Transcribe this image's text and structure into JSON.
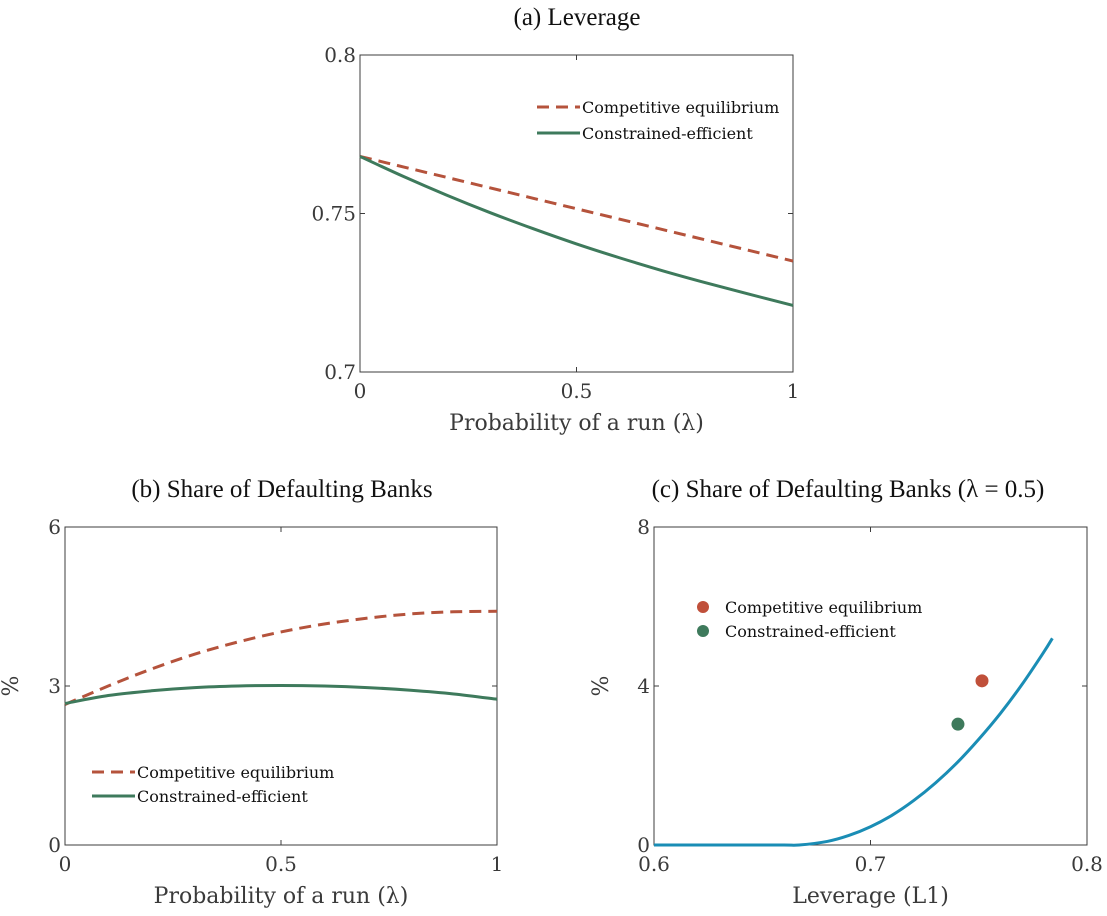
{
  "chart_data": [
    {
      "id": "a",
      "type": "line",
      "title": "(a) Leverage",
      "xlabel": "Probability of a run (λ)",
      "ylabel": "",
      "xlim": [
        0,
        1
      ],
      "ylim": [
        0.7,
        0.8
      ],
      "xticks": [
        0,
        0.5,
        1
      ],
      "xtick_labels": [
        "0",
        "0.5",
        "1"
      ],
      "yticks": [
        0.7,
        0.75,
        0.8
      ],
      "ytick_labels": [
        "0.7",
        "0.75",
        "0.8"
      ],
      "grid": false,
      "legend_position": "top-right",
      "series": [
        {
          "name": "Competitive equilibrium",
          "color": "#b5533c",
          "dash": "dashed",
          "x": [
            0,
            0.1,
            0.2,
            0.3,
            0.4,
            0.5,
            0.6,
            0.7,
            0.8,
            0.9,
            1
          ],
          "y": [
            0.768,
            0.7647,
            0.7614,
            0.7581,
            0.7548,
            0.7515,
            0.7482,
            0.7449,
            0.7416,
            0.7383,
            0.735
          ]
        },
        {
          "name": "Constrained-efficient",
          "color": "#3e7a5c",
          "dash": "solid",
          "x": [
            0,
            0.1,
            0.2,
            0.3,
            0.4,
            0.5,
            0.6,
            0.7,
            0.8,
            0.9,
            1
          ],
          "y": [
            0.768,
            0.7617,
            0.7558,
            0.7503,
            0.7452,
            0.7404,
            0.736,
            0.7319,
            0.7281,
            0.7245,
            0.721
          ]
        }
      ]
    },
    {
      "id": "b",
      "type": "line",
      "title": "(b) Share of Defaulting Banks",
      "xlabel": "Probability of a run (λ)",
      "ylabel": "%",
      "xlim": [
        0,
        1
      ],
      "ylim": [
        0,
        6
      ],
      "xticks": [
        0,
        0.5,
        1
      ],
      "xtick_labels": [
        "0",
        "0.5",
        "1"
      ],
      "yticks": [
        0,
        3,
        6
      ],
      "ytick_labels": [
        "0",
        "3",
        "6"
      ],
      "grid": false,
      "legend_position": "bottom-left",
      "series": [
        {
          "name": "Competitive equilibrium",
          "color": "#b5533c",
          "dash": "dashed",
          "x": [
            0,
            0.1,
            0.2,
            0.3,
            0.4,
            0.5,
            0.6,
            0.7,
            0.8,
            0.9,
            1
          ],
          "y": [
            2.65,
            3.0,
            3.32,
            3.6,
            3.83,
            4.02,
            4.17,
            4.28,
            4.36,
            4.4,
            4.41
          ]
        },
        {
          "name": "Constrained-efficient",
          "color": "#3e7a5c",
          "dash": "solid",
          "x": [
            0,
            0.1,
            0.2,
            0.3,
            0.4,
            0.5,
            0.6,
            0.7,
            0.8,
            0.9,
            1
          ],
          "y": [
            2.67,
            2.82,
            2.91,
            2.97,
            3.0,
            3.01,
            3.0,
            2.97,
            2.92,
            2.85,
            2.75
          ]
        }
      ]
    },
    {
      "id": "c",
      "type": "line",
      "title": "(c) Share of Defaulting Banks (λ = 0.5)",
      "xlabel": "Leverage (L1)",
      "ylabel": "%",
      "xlim": [
        0.6,
        0.8
      ],
      "ylim": [
        0,
        8
      ],
      "xticks": [
        0.6,
        0.7,
        0.8
      ],
      "xtick_labels": [
        "0.6",
        "0.7",
        "0.8"
      ],
      "yticks": [
        0,
        4,
        8
      ],
      "ytick_labels": [
        "0",
        "4",
        "8"
      ],
      "grid": false,
      "legend_position": "top-left",
      "series": [
        {
          "name": "",
          "color": "#1a8db5",
          "dash": "solid",
          "x": [
            0.6,
            0.62,
            0.64,
            0.66,
            0.667,
            0.68,
            0.69,
            0.7,
            0.71,
            0.72,
            0.73,
            0.74,
            0.75,
            0.76,
            0.77,
            0.78,
            0.784
          ],
          "y": [
            0,
            0,
            0,
            0,
            0,
            0.09,
            0.24,
            0.46,
            0.75,
            1.12,
            1.56,
            2.07,
            2.66,
            3.31,
            4.04,
            4.85,
            5.2
          ]
        }
      ],
      "points": [
        {
          "name": "Competitive equilibrium",
          "color": "#c0503a",
          "x": 0.7515,
          "y": 4.13
        },
        {
          "name": "Constrained-efficient",
          "color": "#3e7a5c",
          "x": 0.7404,
          "y": 3.04
        }
      ]
    }
  ]
}
